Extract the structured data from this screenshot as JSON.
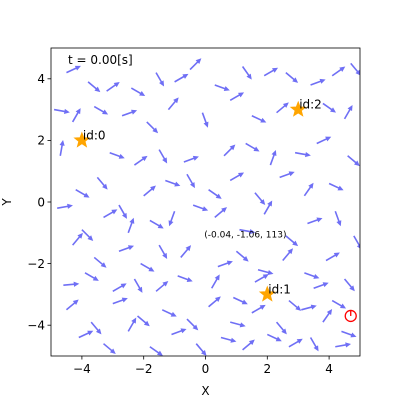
{
  "chart_data": {
    "type": "quiver",
    "xlabel": "X",
    "ylabel": "Y",
    "xlim": [
      -5,
      5
    ],
    "ylim": [
      -5,
      5
    ],
    "xticks": [
      -4,
      -2,
      0,
      2,
      4
    ],
    "yticks": [
      -4,
      -2,
      0,
      2,
      4
    ],
    "time_text": "t = 0.00[s]",
    "robot_text": "(-0.04, -1.06, 113)",
    "robot_marker_pos": [
      4.7,
      -3.7
    ],
    "landmarks": [
      {
        "x": -4,
        "y": 2,
        "label": "id:0"
      },
      {
        "x": 2,
        "y": -3,
        "label": "id:1"
      },
      {
        "x": 3,
        "y": 3,
        "label": "id:2"
      }
    ],
    "particles": [
      [
        -4.5,
        4.2,
        25
      ],
      [
        -3.8,
        3.9,
        -40
      ],
      [
        -3.2,
        3.6,
        35
      ],
      [
        -2.4,
        3.7,
        -30
      ],
      [
        -1.6,
        4.2,
        -60
      ],
      [
        -1.0,
        3.9,
        30
      ],
      [
        -0.5,
        4.3,
        45
      ],
      [
        0.3,
        3.8,
        -20
      ],
      [
        1.2,
        4.4,
        -55
      ],
      [
        1.9,
        4.1,
        30
      ],
      [
        2.6,
        4.2,
        -40
      ],
      [
        3.4,
        3.8,
        20
      ],
      [
        4.1,
        4.1,
        35
      ],
      [
        4.7,
        4.5,
        -50
      ],
      [
        -4.9,
        3.0,
        -10
      ],
      [
        -4.3,
        2.6,
        60
      ],
      [
        -3.6,
        3.1,
        -30
      ],
      [
        -2.7,
        2.8,
        20
      ],
      [
        -1.9,
        2.6,
        -45
      ],
      [
        -1.2,
        3.0,
        50
      ],
      [
        -0.1,
        2.9,
        -70
      ],
      [
        0.8,
        3.3,
        30
      ],
      [
        1.5,
        2.8,
        -25
      ],
      [
        2.3,
        2.9,
        40
      ],
      [
        3.8,
        3.2,
        -35
      ],
      [
        4.5,
        2.7,
        60
      ],
      [
        -4.7,
        1.5,
        80
      ],
      [
        -3.1,
        1.6,
        -20
      ],
      [
        -2.3,
        1.2,
        35
      ],
      [
        -1.5,
        1.7,
        -60
      ],
      [
        -0.7,
        1.3,
        20
      ],
      [
        0.6,
        1.5,
        45
      ],
      [
        1.3,
        1.9,
        -30
      ],
      [
        2.1,
        1.2,
        70
      ],
      [
        2.9,
        1.6,
        -10
      ],
      [
        3.6,
        1.9,
        25
      ],
      [
        4.6,
        1.5,
        -40
      ],
      [
        -4.2,
        0.4,
        -30
      ],
      [
        -3.5,
        0.8,
        -50
      ],
      [
        -2.8,
        -0.1,
        -60
      ],
      [
        -2.0,
        0.2,
        40
      ],
      [
        -1.3,
        0.7,
        -20
      ],
      [
        -0.6,
        0.9,
        -60
      ],
      [
        0.1,
        0.4,
        -35
      ],
      [
        0.8,
        0.7,
        30
      ],
      [
        1.6,
        0.3,
        -50
      ],
      [
        2.4,
        0.8,
        20
      ],
      [
        3.2,
        0.2,
        55
      ],
      [
        4.0,
        0.6,
        -25
      ],
      [
        -4.8,
        -0.2,
        10
      ],
      [
        -4.0,
        -0.9,
        -45
      ],
      [
        -3.3,
        -0.5,
        30
      ],
      [
        -2.5,
        -1.0,
        70
      ],
      [
        -1.8,
        -0.6,
        -30
      ],
      [
        -1.0,
        -0.3,
        -110
      ],
      [
        -0.4,
        -0.1,
        -20
      ],
      [
        0.3,
        -0.5,
        40
      ],
      [
        1.1,
        -0.9,
        -10
      ],
      [
        1.9,
        -0.4,
        60
      ],
      [
        2.6,
        -1.1,
        -40
      ],
      [
        3.3,
        -0.7,
        20
      ],
      [
        4.2,
        -0.3,
        -70
      ],
      [
        4.8,
        -1.1,
        -60
      ],
      [
        -4.3,
        -1.4,
        50
      ],
      [
        -3.6,
        -1.8,
        -40
      ],
      [
        -2.8,
        -1.6,
        20
      ],
      [
        -2.1,
        -2.0,
        -30
      ],
      [
        -1.5,
        -1.4,
        -60
      ],
      [
        -0.8,
        -1.8,
        50
      ],
      [
        0.4,
        -2.1,
        20
      ],
      [
        1.0,
        -1.6,
        -40
      ],
      [
        1.7,
        -2.2,
        -15
      ],
      [
        2.5,
        -1.9,
        50
      ],
      [
        3.2,
        -2.3,
        -20
      ],
      [
        3.9,
        -1.9,
        30
      ],
      [
        4.5,
        -2.5,
        -50
      ],
      [
        -4.6,
        -2.7,
        5
      ],
      [
        -3.9,
        -2.3,
        -30
      ],
      [
        -3.0,
        -2.9,
        30
      ],
      [
        -2.3,
        -2.5,
        -60
      ],
      [
        -1.6,
        -2.9,
        40
      ],
      [
        -0.9,
        -2.4,
        -20
      ],
      [
        0.2,
        -2.8,
        60
      ],
      [
        0.9,
        -3.1,
        -25
      ],
      [
        1.6,
        -2.6,
        30
      ],
      [
        2.7,
        -3.2,
        -40
      ],
      [
        3.5,
        -2.8,
        20
      ],
      [
        4.1,
        -3.2,
        -30
      ],
      [
        -4.5,
        -3.5,
        40
      ],
      [
        -3.7,
        -3.9,
        -50
      ],
      [
        -3.0,
        -3.3,
        20
      ],
      [
        -2.2,
        -3.7,
        -40
      ],
      [
        -1.4,
        -3.5,
        -25
      ],
      [
        -0.6,
        -3.8,
        -45
      ],
      [
        0.1,
        -3.4,
        40
      ],
      [
        0.8,
        -3.9,
        -15
      ],
      [
        1.5,
        -3.6,
        30
      ],
      [
        2.3,
        -3.9,
        -50
      ],
      [
        3.1,
        -3.5,
        15
      ],
      [
        3.8,
        -3.9,
        55
      ],
      [
        4.4,
        -4.2,
        -20
      ],
      [
        -4.1,
        -4.4,
        25
      ],
      [
        -3.3,
        -4.6,
        -40
      ],
      [
        -2.5,
        -4.2,
        60
      ],
      [
        -1.8,
        -4.7,
        -35
      ],
      [
        -1.1,
        -4.3,
        20
      ],
      [
        -0.3,
        -4.6,
        -50
      ],
      [
        0.5,
        -4.4,
        -15
      ],
      [
        1.2,
        -4.8,
        40
      ],
      [
        2.0,
        -4.3,
        -25
      ],
      [
        2.7,
        -4.7,
        30
      ],
      [
        3.4,
        -4.4,
        -60
      ],
      [
        4.2,
        -4.7,
        10
      ]
    ],
    "colors": {
      "arrow": "#6f6ff5",
      "landmark": "#ffa500",
      "robot": "#ff0000",
      "axis": "#000000"
    }
  }
}
